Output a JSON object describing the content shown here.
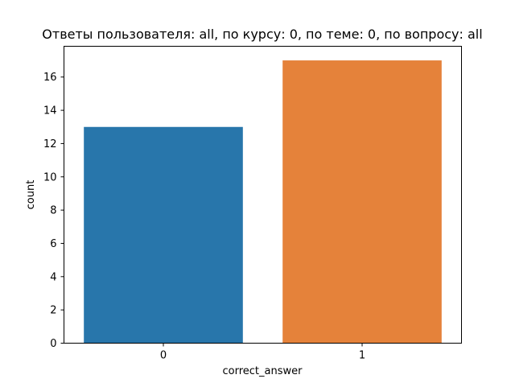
{
  "chart_data": {
    "type": "bar",
    "title": "Ответы пользователя: all, по курсу: 0, по теме: 0, по вопросу: all",
    "xlabel": "correct_answer",
    "ylabel": "count",
    "categories": [
      "0",
      "1"
    ],
    "values": [
      13,
      17
    ],
    "colors": [
      "#2876ab",
      "#e5823a"
    ],
    "ylim": [
      0,
      17.85
    ],
    "yticks": [
      0,
      2,
      4,
      6,
      8,
      10,
      12,
      14,
      16
    ],
    "grid": false,
    "legend": "none"
  }
}
